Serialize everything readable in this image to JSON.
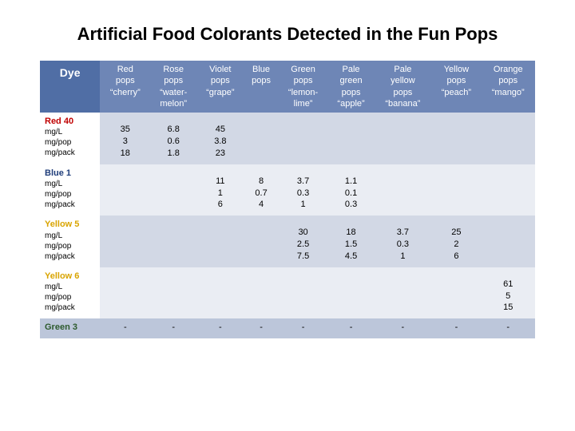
{
  "title": "Artificial Food Colorants Detected in the Fun Pops",
  "type": "table",
  "background_color": "#ffffff",
  "title_fontsize": 22,
  "label_fontsize": 11,
  "header_bg_dark": "#506ea5",
  "header_bg_light": "#6e86b6",
  "header_text_color": "#ffffff",
  "row_even_bg": "#d2d8e5",
  "row_odd_bg": "#eaedf3",
  "green3_row_bg": "#bcc6da",
  "cell_text_color": "#000000",
  "dye_label": "Dye",
  "columns": [
    {
      "line1": "Red",
      "line2": "pops",
      "line3": "“cherry”"
    },
    {
      "line1": "Rose",
      "line2": "pops",
      "line3": "“water-",
      "line4": "melon”"
    },
    {
      "line1": "Violet",
      "line2": "pops",
      "line3": "“grape”"
    },
    {
      "line1": "Blue",
      "line2": "pops",
      "line3": ""
    },
    {
      "line1": "Green",
      "line2": "pops",
      "line3": "“lemon-",
      "line4": "lime”"
    },
    {
      "line1": "Pale",
      "line2": "green",
      "line3": "pops",
      "line4": "“apple”"
    },
    {
      "line1": "Pale",
      "line2": "yellow",
      "line3": "pops",
      "line4": "“banana”"
    },
    {
      "line1": "Yellow",
      "line2": "pops",
      "line3": "“peach”"
    },
    {
      "line1": "Orange",
      "line2": "pops",
      "line3": "“mango”"
    }
  ],
  "metrics": [
    "mg/L",
    "mg/pop",
    "mg/pack"
  ],
  "dyes": {
    "red40": {
      "name": "Red 40",
      "color": "#c00000"
    },
    "blue1": {
      "name": "Blue 1",
      "color": "#1f3d7a"
    },
    "yellow5": {
      "name": "Yellow 5",
      "color": "#d9a400"
    },
    "yellow6": {
      "name": "Yellow 6",
      "color": "#d9a400"
    },
    "green3": {
      "name": "Green 3",
      "color": "#2d5a2d"
    }
  },
  "rows": {
    "red40": [
      {
        "v1": "35",
        "v2": "3",
        "v3": "18"
      },
      {
        "v1": "6.8",
        "v2": "0.6",
        "v3": "1.8"
      },
      {
        "v1": "45",
        "v2": "3.8",
        "v3": "23"
      },
      null,
      null,
      null,
      null,
      null,
      null
    ],
    "blue1": [
      null,
      null,
      {
        "v1": "11",
        "v2": "1",
        "v3": "6"
      },
      {
        "v1": "8",
        "v2": "0.7",
        "v3": "4"
      },
      {
        "v1": "3.7",
        "v2": "0.3",
        "v3": "1"
      },
      {
        "v1": "1.1",
        "v2": "0.1",
        "v3": "0.3"
      },
      null,
      null,
      null
    ],
    "yellow5": [
      null,
      null,
      null,
      null,
      {
        "v1": "30",
        "v2": "2.5",
        "v3": "7.5"
      },
      {
        "v1": "18",
        "v2": "1.5",
        "v3": "4.5"
      },
      {
        "v1": "3.7",
        "v2": "0.3",
        "v3": "1"
      },
      {
        "v1": "25",
        "v2": "2",
        "v3": "6"
      },
      null
    ],
    "yellow6": [
      null,
      null,
      null,
      null,
      null,
      null,
      null,
      null,
      {
        "v1": "61",
        "v2": "5",
        "v3": "15"
      }
    ],
    "green3": [
      "-",
      "-",
      "-",
      "-",
      "-",
      "-",
      "-",
      "-",
      "-"
    ]
  }
}
